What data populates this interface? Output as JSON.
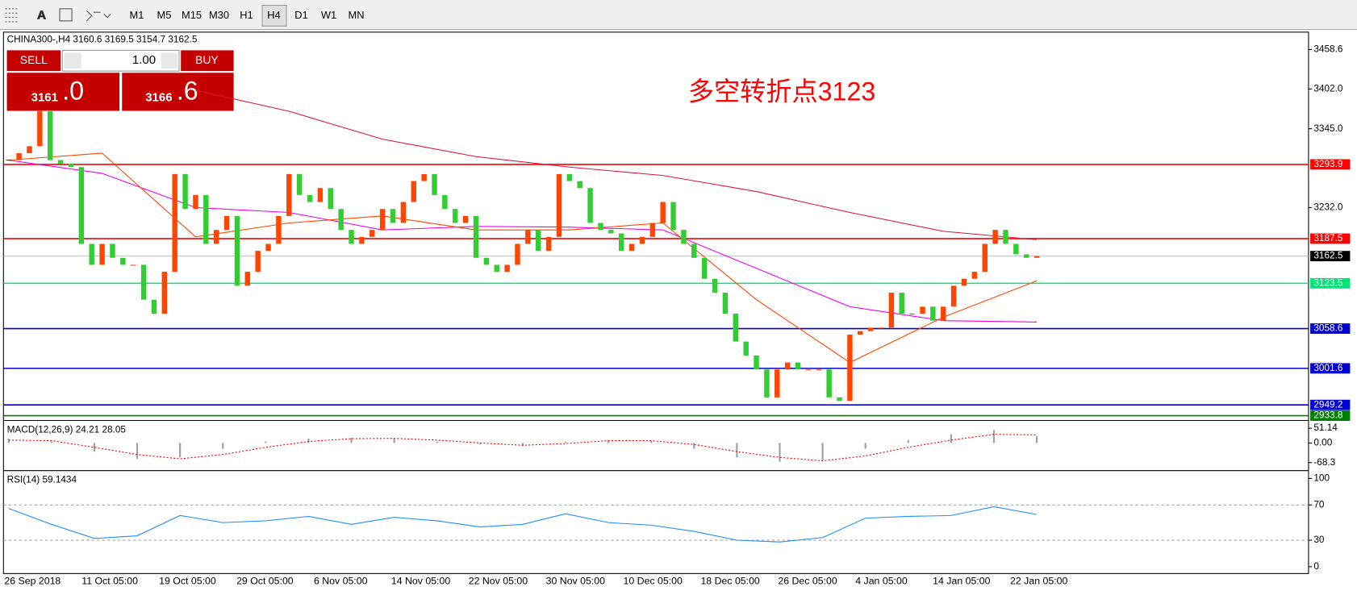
{
  "toolbar": {
    "timeframes": [
      "M1",
      "M5",
      "M15",
      "M30",
      "H1",
      "H4",
      "D1",
      "W1",
      "MN"
    ]
  },
  "symbol_info": "CHINA300-,H4  3160.6 3169.5 3154.7 3162.5",
  "trade_panel": {
    "sell": "SELL",
    "buy": "BUY",
    "lot": "1.00",
    "bid_big": "3161",
    "bid_small": ".0",
    "ask_big": "3166",
    "ask_small": ".6"
  },
  "annotation": "多空转折点3123",
  "chart_data": {
    "type": "candlestick",
    "closes": [
      3300,
      3310,
      3320,
      3370,
      3300,
      3295,
      3290,
      3180,
      3150,
      3180,
      3160,
      3150,
      3150,
      3100,
      3080,
      3140,
      3280,
      3230,
      3250,
      3180,
      3200,
      3220,
      3120,
      3140,
      3170,
      3180,
      3220,
      3280,
      3250,
      3240,
      3260,
      3230,
      3200,
      3180,
      3190,
      3200,
      3230,
      3210,
      3240,
      3270,
      3280,
      3250,
      3230,
      3210,
      3220,
      3160,
      3150,
      3140,
      3150,
      3180,
      3200,
      3170,
      3190,
      3280,
      3270,
      3260,
      3210,
      3200,
      3195,
      3170,
      3180,
      3190,
      3210,
      3240,
      3200,
      3180,
      3160,
      3130,
      3110,
      3080,
      3040,
      3020,
      3000,
      2960,
      3000,
      3010,
      3000,
      3000,
      3000,
      2960,
      2955,
      3050,
      3055,
      3060,
      3060,
      3110,
      3080,
      3080,
      3090,
      3070,
      3090,
      3120,
      3130,
      3140,
      3180,
      3200,
      3180,
      3165,
      3160,
      3162.5
    ],
    "moving_averages": [
      {
        "color": "#dc143c",
        "values": [
          null,
          null,
          3400,
          3370,
          3330,
          3305,
          3290,
          3278,
          3255,
          3225,
          3198,
          3186
        ]
      },
      {
        "color": "#ee00ee",
        "values": [
          3300,
          3281,
          3232,
          3225,
          3200,
          3205,
          3204,
          3200,
          3145,
          3090,
          3070,
          3068
        ]
      },
      {
        "color": "#ff4500",
        "values": [
          3300,
          3310,
          3190,
          3210,
          3220,
          3200,
          3200,
          3210,
          3100,
          3010,
          3075,
          3127
        ]
      }
    ],
    "ylim": [
      2929.4,
      3479.7
    ],
    "yticks": [
      3458.6,
      {
        "value": 3402,
        "label": "3402.0"
      },
      {
        "value": 3345,
        "label": "3345.0"
      },
      {
        "value": 3232,
        "label": "3232.0"
      }
    ],
    "levels": [
      {
        "value": 3293.9,
        "color": "#ff0000"
      },
      {
        "value": 3187.5,
        "color": "#ff0000"
      },
      {
        "value": 3123.5,
        "color": "#00e676"
      },
      {
        "value": 3058.6,
        "color": "#0000cd"
      },
      {
        "value": 3001.6,
        "color": "#0000cd"
      },
      {
        "value": 2949.2,
        "color": "#0000cd"
      },
      {
        "value": 2933.8,
        "color": "#008000"
      }
    ],
    "current_price": 3162.5,
    "x_labels": [
      "26 Sep 2018",
      "11 Oct 05:00",
      "19 Oct 05:00",
      "29 Oct 05:00",
      "6 Nov 05:00",
      "14 Nov 05:00",
      "22 Nov 05:00",
      "30 Nov 05:00",
      "10 Dec 05:00",
      "18 Dec 05:00",
      "26 Dec 05:00",
      "4 Jan 05:00",
      "14 Jan 05:00",
      "22 Jan 05:00"
    ]
  },
  "macd": {
    "label": "MACD(12,26,9) 24.21 28.05",
    "ylim": [
      -93,
      66
    ],
    "yticks": [
      51.14,
      {
        "value": 0,
        "label": "0.00"
      },
      -68.3
    ],
    "histogram": [
      15,
      5,
      -30,
      -55,
      -50,
      -20,
      5,
      15,
      18,
      15,
      5,
      -5,
      -10,
      5,
      10,
      8,
      -20,
      -50,
      -65,
      -60,
      -20,
      10,
      30,
      45,
      24.21
    ],
    "signal": [
      10,
      8,
      -15,
      -40,
      -55,
      -40,
      -15,
      5,
      15,
      16,
      10,
      0,
      -8,
      -2,
      8,
      8,
      -5,
      -30,
      -50,
      -62,
      -45,
      -15,
      10,
      30,
      28.05
    ]
  },
  "rsi": {
    "label": "RSI(14) 59.1434",
    "ylim": [
      -7.8,
      105.9
    ],
    "yticks": [
      100,
      70,
      30,
      0
    ],
    "levels": [
      70,
      30
    ],
    "values": [
      66,
      48,
      32,
      35,
      58,
      50,
      52,
      57,
      48,
      56,
      52,
      45,
      48,
      60,
      50,
      47,
      40,
      30,
      28,
      33,
      55,
      57,
      58,
      68,
      59.1434
    ]
  }
}
